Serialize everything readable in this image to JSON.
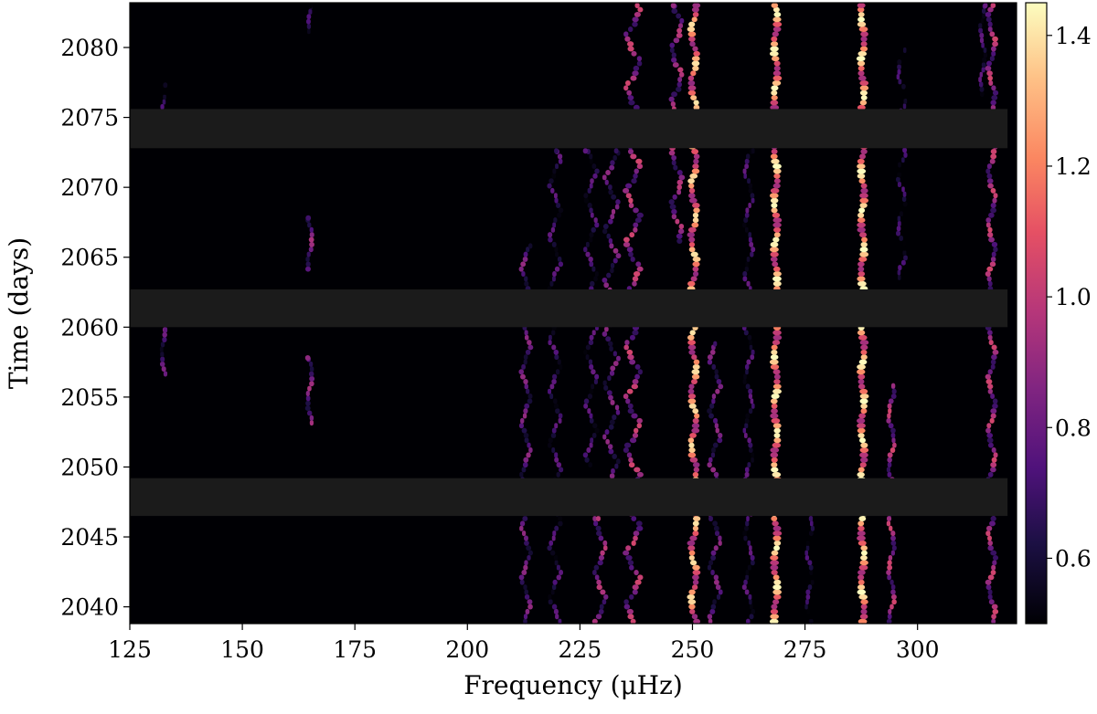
{
  "chart_data": {
    "type": "heatmap",
    "colormap": "magma",
    "xlabel": "Frequency (μHz)",
    "ylabel": "Time (days)",
    "xlim": [
      125,
      322
    ],
    "ylim": [
      2038.8,
      2083.2
    ],
    "x_ticks": [
      125,
      150,
      175,
      200,
      225,
      250,
      275,
      300
    ],
    "y_ticks": [
      2040,
      2045,
      2050,
      2055,
      2060,
      2065,
      2070,
      2075,
      2080
    ],
    "colorbar": {
      "range": [
        0.5,
        1.45
      ],
      "ticks": [
        0.6,
        0.8,
        1.0,
        1.2,
        1.4
      ],
      "tick_labels": [
        "0.6",
        "0.8",
        "1.0",
        "1.2",
        "1.4"
      ]
    },
    "gaps": [
      {
        "t_start": 2072.8,
        "t_end": 2075.6
      },
      {
        "t_start": 2060.0,
        "t_end": 2062.7
      },
      {
        "t_start": 2046.5,
        "t_end": 2049.2
      }
    ],
    "ridges": [
      {
        "freq": 268.5,
        "intensity": 1.45,
        "width": 2.0,
        "t_range": [
          2038.8,
          2083.2
        ],
        "wobble": 0.4
      },
      {
        "freq": 287.8,
        "intensity": 1.45,
        "width": 2.0,
        "t_range": [
          2038.8,
          2083.2
        ],
        "wobble": 0.4
      },
      {
        "freq": 250.3,
        "intensity": 1.4,
        "width": 1.8,
        "t_range": [
          2038.8,
          2083.2
        ],
        "wobble": 0.6
      },
      {
        "freq": 246.5,
        "intensity": 1.0,
        "width": 1.4,
        "t_range": [
          2066.0,
          2083.2
        ],
        "wobble": 1.0
      },
      {
        "freq": 316.5,
        "intensity": 1.05,
        "width": 1.4,
        "t_range": [
          2038.8,
          2083.2
        ],
        "wobble": 0.7
      },
      {
        "freq": 236.8,
        "intensity": 1.05,
        "width": 1.5,
        "t_range": [
          2038.8,
          2083.2
        ],
        "wobble": 1.3
      },
      {
        "freq": 229.5,
        "intensity": 1.0,
        "width": 1.3,
        "t_range": [
          2038.8,
          2046.5
        ],
        "wobble": 1.0
      },
      {
        "freq": 232.0,
        "intensity": 0.9,
        "width": 1.2,
        "t_range": [
          2049.2,
          2072.8
        ],
        "wobble": 1.2
      },
      {
        "freq": 227.5,
        "intensity": 0.8,
        "width": 1.1,
        "t_range": [
          2050.0,
          2072.8
        ],
        "wobble": 1.0
      },
      {
        "freq": 213.0,
        "intensity": 0.9,
        "width": 1.2,
        "t_range": [
          2038.8,
          2066.0
        ],
        "wobble": 0.8
      },
      {
        "freq": 219.5,
        "intensity": 0.8,
        "width": 1.1,
        "t_range": [
          2038.8,
          2072.8
        ],
        "wobble": 1.0
      },
      {
        "freq": 255.0,
        "intensity": 0.9,
        "width": 1.2,
        "t_range": [
          2038.8,
          2059.0
        ],
        "wobble": 1.0
      },
      {
        "freq": 262.5,
        "intensity": 0.8,
        "width": 1.0,
        "t_range": [
          2038.8,
          2072.8
        ],
        "wobble": 0.8
      },
      {
        "freq": 276.0,
        "intensity": 0.75,
        "width": 1.0,
        "t_range": [
          2038.8,
          2046.5
        ],
        "wobble": 0.6
      },
      {
        "freq": 294.2,
        "intensity": 1.05,
        "width": 1.2,
        "t_range": [
          2038.8,
          2056.0
        ],
        "wobble": 0.6
      },
      {
        "freq": 296.5,
        "intensity": 0.75,
        "width": 1.0,
        "t_range": [
          2062.7,
          2080.0
        ],
        "wobble": 0.8
      },
      {
        "freq": 165.0,
        "intensity": 0.95,
        "width": 1.2,
        "t_range": [
          2053.0,
          2058.0
        ],
        "wobble": 0.5
      },
      {
        "freq": 165.0,
        "intensity": 0.95,
        "width": 1.2,
        "t_range": [
          2064.0,
          2068.0
        ],
        "wobble": 0.5
      },
      {
        "freq": 165.0,
        "intensity": 0.75,
        "width": 1.0,
        "t_range": [
          2081.0,
          2083.2
        ],
        "wobble": 0.3
      },
      {
        "freq": 132.5,
        "intensity": 0.85,
        "width": 1.1,
        "t_range": [
          2056.5,
          2060.0
        ],
        "wobble": 0.4
      },
      {
        "freq": 132.5,
        "intensity": 0.75,
        "width": 1.0,
        "t_range": [
          2075.6,
          2077.5
        ],
        "wobble": 0.4
      },
      {
        "freq": 314.5,
        "intensity": 0.8,
        "width": 1.0,
        "t_range": [
          2076.5,
          2083.2
        ],
        "wobble": 0.5
      }
    ]
  }
}
